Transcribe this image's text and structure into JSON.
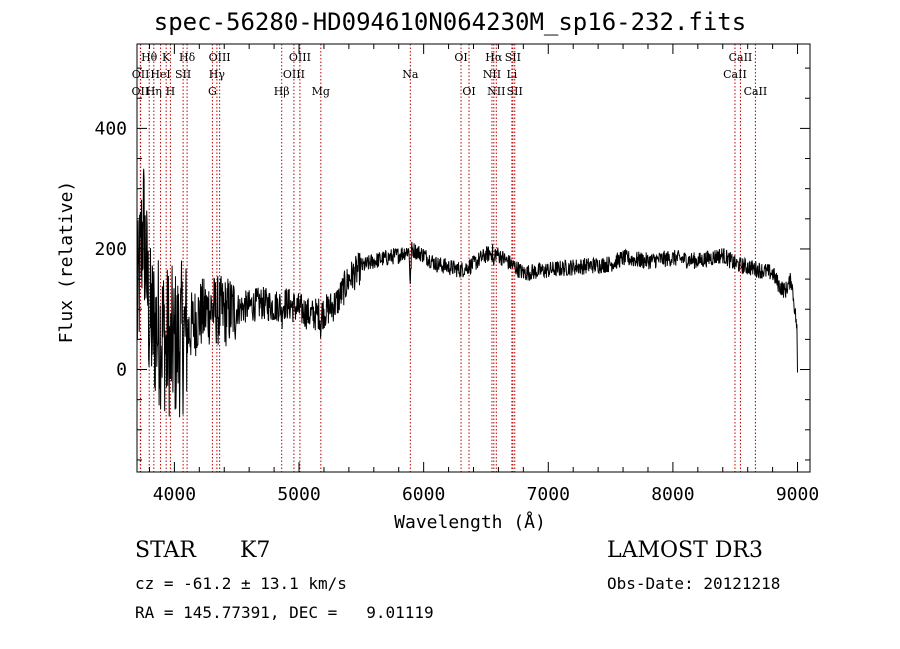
{
  "title": "spec-56280-HD094610N064230M_sp16-232.fits",
  "object_class": "STAR",
  "subclass": "K7",
  "survey": "LAMOST DR3",
  "cz_text": "cz = -61.2 ± 13.1 km/s",
  "obs_date_text": "Obs-Date: 20121218",
  "coords_text": "RA = 145.77391, DEC =   9.01119",
  "chart_data": {
    "type": "line",
    "title": "spec-56280-HD094610N064230M_sp16-232.fits",
    "xlabel": "Wavelength (Å)",
    "ylabel": "Flux (relative)",
    "xlim": [
      3700,
      9100
    ],
    "ylim": [
      -170,
      540
    ],
    "xticks": [
      4000,
      5000,
      6000,
      7000,
      8000,
      9000
    ],
    "yticks": [
      0,
      200,
      400
    ],
    "series": [
      {
        "name": "flux",
        "anchors_x": [
          3700,
          3750,
          3800,
          3900,
          4000,
          4100,
          4200,
          4300,
          4400,
          4500,
          4600,
          4700,
          4800,
          4900,
          5000,
          5100,
          5200,
          5300,
          5400,
          5500,
          5600,
          5700,
          5800,
          5900,
          6000,
          6100,
          6200,
          6300,
          6400,
          6500,
          6560,
          6600,
          6700,
          6800,
          7000,
          7200,
          7500,
          7600,
          7800,
          8000,
          8200,
          8400,
          8500,
          8600,
          8700,
          8800,
          8850,
          8900,
          8950,
          9000
        ],
        "anchors_y": [
          90,
          250,
          80,
          60,
          40,
          60,
          90,
          100,
          95,
          100,
          105,
          110,
          105,
          110,
          100,
          90,
          95,
          110,
          150,
          170,
          180,
          185,
          190,
          200,
          190,
          175,
          170,
          165,
          175,
          190,
          195,
          190,
          175,
          160,
          165,
          170,
          175,
          185,
          180,
          185,
          180,
          190,
          175,
          170,
          165,
          160,
          140,
          130,
          150,
          60
        ]
      }
    ],
    "line_ids": [
      {
        "label": "OII",
        "wave": 3727,
        "row": 3
      },
      {
        "label": "Hθ",
        "wave": 3798,
        "row": 1
      },
      {
        "label": "OII",
        "wave": 3729,
        "row": 2
      },
      {
        "label": "HeI",
        "wave": 3889,
        "row": 2
      },
      {
        "label": "Hη",
        "wave": 3835,
        "row": 3
      },
      {
        "label": "K",
        "wave": 3934,
        "row": 1
      },
      {
        "label": "H",
        "wave": 3968,
        "row": 3
      },
      {
        "label": "SII",
        "wave": 4070,
        "row": 2
      },
      {
        "label": "Hδ",
        "wave": 4102,
        "row": 1
      },
      {
        "label": "OIII",
        "wave": 4363,
        "row": 1
      },
      {
        "label": "Hγ",
        "wave": 4341,
        "row": 2
      },
      {
        "label": "G",
        "wave": 4305,
        "row": 3
      },
      {
        "label": "OIII",
        "wave": 5007,
        "row": 1
      },
      {
        "label": "OIII",
        "wave": 4959,
        "row": 2
      },
      {
        "label": "Hβ",
        "wave": 4861,
        "row": 3
      },
      {
        "label": "Mg",
        "wave": 5175,
        "row": 3
      },
      {
        "label": "Na",
        "wave": 5893,
        "row": 2
      },
      {
        "label": "OI",
        "wave": 6300,
        "row": 1
      },
      {
        "label": "OI",
        "wave": 6364,
        "row": 3
      },
      {
        "label": "Hα",
        "wave": 6563,
        "row": 1
      },
      {
        "label": "NII",
        "wave": 6548,
        "row": 2
      },
      {
        "label": "NII",
        "wave": 6583,
        "row": 3
      },
      {
        "label": "SII",
        "wave": 6716,
        "row": 1
      },
      {
        "label": "Li",
        "wave": 6708,
        "row": 2
      },
      {
        "label": "SII",
        "wave": 6731,
        "row": 3
      },
      {
        "label": "CaII",
        "wave": 8542,
        "row": 1
      },
      {
        "label": "CaII",
        "wave": 8498,
        "row": 2
      },
      {
        "label": "CaII",
        "wave": 8662,
        "row": 3
      }
    ]
  }
}
